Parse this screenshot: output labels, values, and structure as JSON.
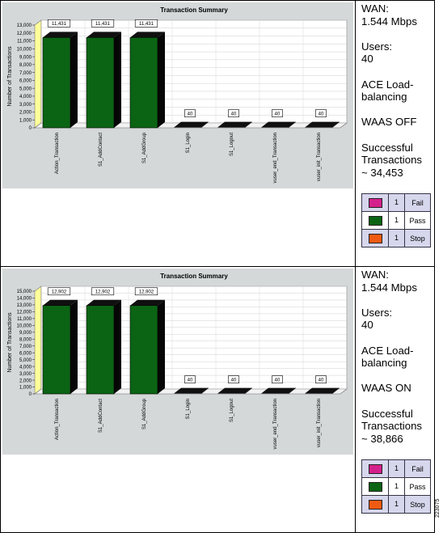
{
  "rows": [
    {
      "info": {
        "wan_label": "WAN:",
        "wan_value": "1.544 Mbps",
        "users_label": "Users:",
        "users_value": "40",
        "ace_line1": "ACE Load-",
        "ace_line2": "balancing",
        "waas": "WAAS OFF",
        "succ_line1": "Successful",
        "succ_line2": "Transactions",
        "succ_line3": "~ 34,453"
      },
      "legend": [
        {
          "label": "Fail",
          "count": "1",
          "color": "#d4208c"
        },
        {
          "label": "Pass",
          "count": "1",
          "color": "#0b6414"
        },
        {
          "label": "Stop",
          "count": "1",
          "color": "#f05a12"
        }
      ]
    },
    {
      "info": {
        "wan_label": "WAN:",
        "wan_value": "1.544 Mbps",
        "users_label": "Users:",
        "users_value": "40",
        "ace_line1": "ACE Load-",
        "ace_line2": "balancing",
        "waas": "WAAS ON",
        "succ_line1": "Successful",
        "succ_line2": "Transactions",
        "succ_line3": "~ 38,866"
      },
      "legend": [
        {
          "label": "Fail",
          "count": "1",
          "color": "#d4208c"
        },
        {
          "label": "Pass",
          "count": "1",
          "color": "#0b6414"
        },
        {
          "label": "Stop",
          "count": "1",
          "color": "#f05a12"
        }
      ]
    }
  ],
  "figure_id": "223075",
  "chart_data": [
    {
      "type": "bar",
      "title": "Transaction Summary",
      "xlabel": "",
      "ylabel": "Number of Transactions",
      "ylim": [
        0,
        13000
      ],
      "yticks": [
        "0",
        "1,000",
        "2,000",
        "3,000",
        "4,000",
        "5,000",
        "6,000",
        "7,000",
        "8,000",
        "9,000",
        "10,000",
        "11,000",
        "12,000",
        "13,000"
      ],
      "categories": [
        "Action_Transaction",
        "S1_AddContact",
        "S1_AddGroup",
        "S1_Login",
        "S1_Logout",
        "vuser_end_Transaction",
        "vuser_init_Transaction"
      ],
      "values": [
        11431,
        11431,
        11431,
        40,
        40,
        40,
        40
      ],
      "data_labels": [
        "11,431",
        "11,431",
        "11,431",
        "40",
        "40",
        "40",
        "40"
      ],
      "bar_color": "#0b6414",
      "grid": true
    },
    {
      "type": "bar",
      "title": "Transaction Summary",
      "xlabel": "",
      "ylabel": "Number of Transactions",
      "ylim": [
        0,
        15000
      ],
      "yticks": [
        "0",
        "1,000",
        "2,000",
        "3,000",
        "4,000",
        "5,000",
        "6,000",
        "7,000",
        "8,000",
        "9,000",
        "10,000",
        "11,000",
        "12,000",
        "13,000",
        "14,000",
        "15,000"
      ],
      "categories": [
        "Action_Transaction",
        "S1_AddContact",
        "S1_AddGroup",
        "S1_Login",
        "S1_Logout",
        "vuser_end_Transaction",
        "vuser_init_Transaction"
      ],
      "values": [
        12902,
        12902,
        12902,
        40,
        40,
        40,
        40
      ],
      "data_labels": [
        "12,902",
        "12,902",
        "12,902",
        "40",
        "40",
        "40",
        "40"
      ],
      "bar_color": "#0b6414",
      "grid": true
    }
  ]
}
